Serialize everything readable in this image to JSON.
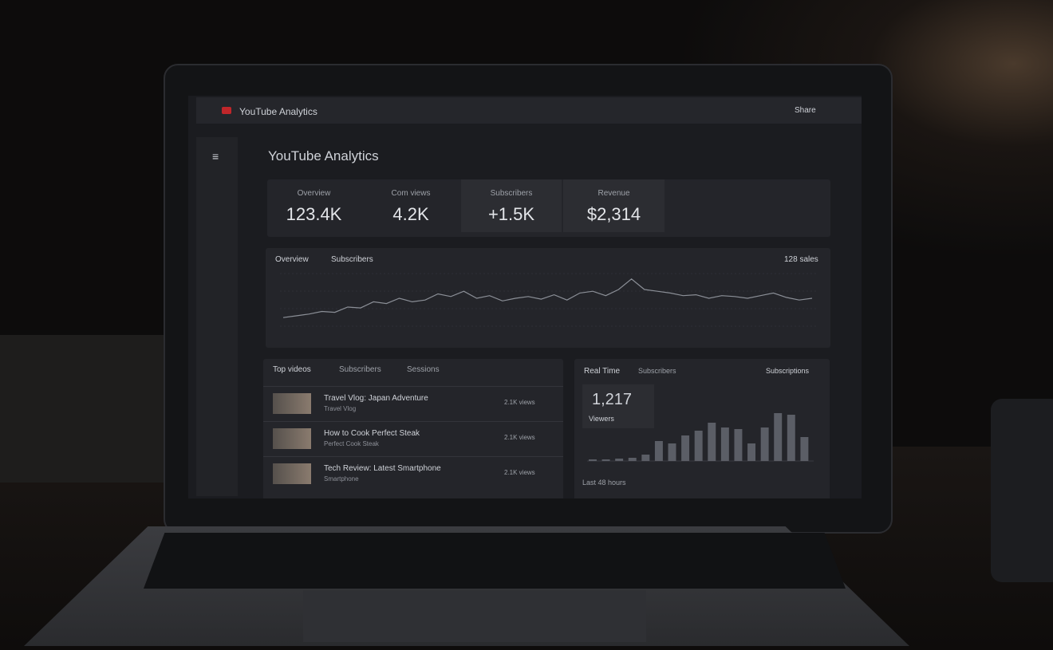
{
  "topbar": {
    "title": "YouTube Analytics",
    "action": "Share"
  },
  "header": {
    "title": "YouTube Analytics"
  },
  "metrics": [
    {
      "label": "Overview",
      "value": "123.4K"
    },
    {
      "label": "Com views",
      "value": "4.2K"
    },
    {
      "label": "Subscribers",
      "value": "+1.5K"
    },
    {
      "label": "Revenue",
      "value": "$2,314"
    }
  ],
  "overview": {
    "tabs": [
      "Overview",
      "Subscribers"
    ],
    "summary": "128 sales",
    "values": [
      8,
      10,
      12,
      15,
      14,
      20,
      19,
      26,
      24,
      30,
      26,
      28,
      35,
      32,
      38,
      30,
      33,
      27,
      30,
      32,
      29,
      34,
      28,
      36,
      38,
      33,
      40,
      52,
      40,
      38,
      36,
      33,
      34,
      30,
      33,
      32,
      30,
      33,
      36,
      31,
      28,
      30
    ]
  },
  "top_videos": {
    "tabs": [
      "Top videos",
      "Subscribers",
      "Sessions"
    ],
    "rows": [
      {
        "title": "Travel Vlog: Japan Adventure",
        "subtitle": "Travel Vlog",
        "views": "2.1K views"
      },
      {
        "title": "How to Cook Perfect Steak",
        "subtitle": "Perfect Cook Steak",
        "views": "2.1K views"
      },
      {
        "title": "Tech Review: Latest Smartphone",
        "subtitle": "Smartphone",
        "views": "2.1K views"
      }
    ]
  },
  "real_time": {
    "title": "Real Time",
    "tab": "Subscribers",
    "side": "Subscriptions",
    "count": "1,217",
    "count_label": "Viewers",
    "footer": "Last 48 hours",
    "values": [
      2,
      2,
      3,
      4,
      8,
      25,
      22,
      32,
      38,
      48,
      42,
      40,
      22,
      42,
      60,
      58,
      30
    ]
  }
}
